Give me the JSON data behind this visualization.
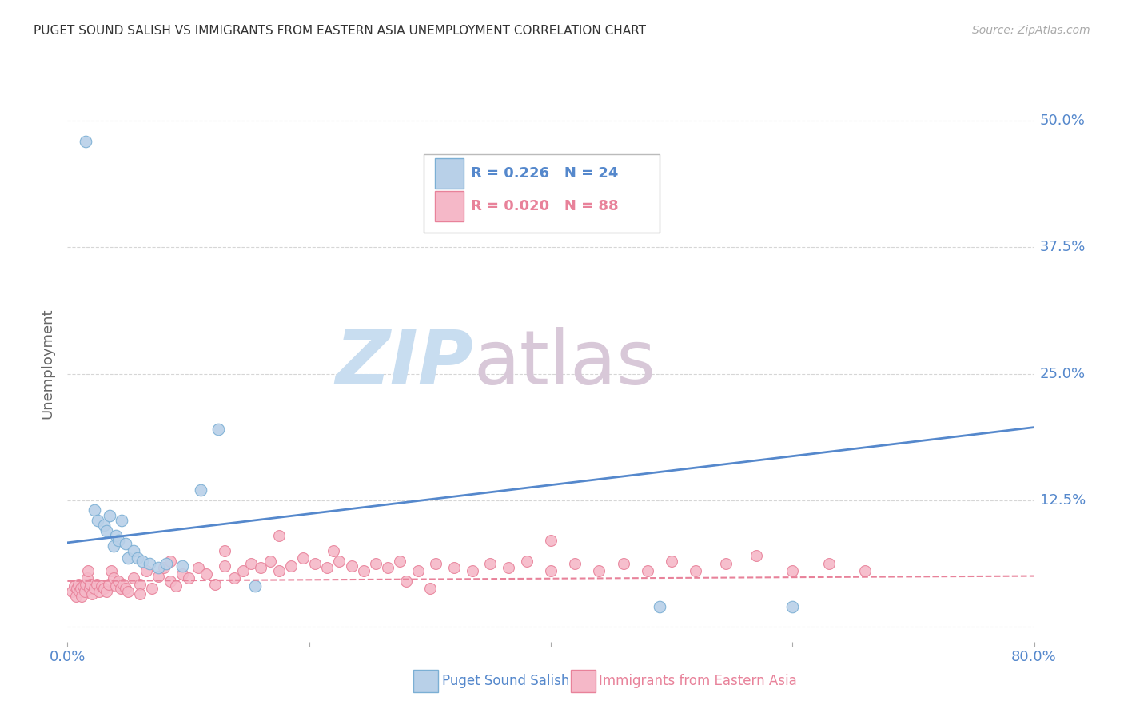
{
  "title": "PUGET SOUND SALISH VS IMMIGRANTS FROM EASTERN ASIA UNEMPLOYMENT CORRELATION CHART",
  "source": "Source: ZipAtlas.com",
  "ylabel": "Unemployment",
  "xlim": [
    0.0,
    0.8
  ],
  "ylim": [
    -0.015,
    0.535
  ],
  "yticks": [
    0.0,
    0.125,
    0.25,
    0.375,
    0.5
  ],
  "ytick_labels": [
    "",
    "12.5%",
    "25.0%",
    "37.5%",
    "50.0%"
  ],
  "xticks": [
    0.0,
    0.2,
    0.4,
    0.6,
    0.8
  ],
  "xtick_labels": [
    "0.0%",
    "",
    "",
    "",
    "80.0%"
  ],
  "background_color": "#ffffff",
  "grid_color": "#cccccc",
  "series1_label": "Puget Sound Salish",
  "series2_label": "Immigrants from Eastern Asia",
  "series1_color": "#b8d0e8",
  "series2_color": "#f5b8c8",
  "series1_edge_color": "#7bafd4",
  "series2_edge_color": "#e8829a",
  "series1_line_color": "#5588cc",
  "series2_line_color": "#e8829a",
  "series1_R": "0.226",
  "series1_N": "24",
  "series2_R": "0.020",
  "series2_N": "88",
  "title_color": "#333333",
  "axis_label_color": "#666666",
  "tick_label_color": "#5588cc",
  "source_color": "#aaaaaa",
  "watermark_zip_color": "#c8ddf0",
  "watermark_atlas_color": "#d8c8d8",
  "series1_x": [
    0.015,
    0.022,
    0.025,
    0.03,
    0.032,
    0.035,
    0.038,
    0.04,
    0.042,
    0.045,
    0.048,
    0.05,
    0.055,
    0.058,
    0.062,
    0.068,
    0.075,
    0.082,
    0.095,
    0.11,
    0.125,
    0.155,
    0.49,
    0.6
  ],
  "series1_y": [
    0.48,
    0.115,
    0.105,
    0.1,
    0.095,
    0.11,
    0.08,
    0.09,
    0.085,
    0.105,
    0.082,
    0.068,
    0.075,
    0.068,
    0.065,
    0.062,
    0.058,
    0.062,
    0.06,
    0.135,
    0.195,
    0.04,
    0.02,
    0.02
  ],
  "series2_x": [
    0.004,
    0.006,
    0.007,
    0.008,
    0.009,
    0.01,
    0.011,
    0.012,
    0.013,
    0.014,
    0.015,
    0.016,
    0.017,
    0.018,
    0.019,
    0.02,
    0.022,
    0.024,
    0.026,
    0.028,
    0.03,
    0.032,
    0.034,
    0.036,
    0.038,
    0.04,
    0.042,
    0.044,
    0.046,
    0.048,
    0.05,
    0.055,
    0.06,
    0.065,
    0.07,
    0.075,
    0.08,
    0.085,
    0.09,
    0.095,
    0.1,
    0.108,
    0.115,
    0.122,
    0.13,
    0.138,
    0.145,
    0.152,
    0.16,
    0.168,
    0.175,
    0.185,
    0.195,
    0.205,
    0.215,
    0.225,
    0.235,
    0.245,
    0.255,
    0.265,
    0.275,
    0.29,
    0.305,
    0.32,
    0.335,
    0.35,
    0.365,
    0.38,
    0.4,
    0.42,
    0.44,
    0.46,
    0.48,
    0.5,
    0.52,
    0.545,
    0.57,
    0.6,
    0.63,
    0.66,
    0.3,
    0.4,
    0.175,
    0.22,
    0.28,
    0.13,
    0.085,
    0.06
  ],
  "series2_y": [
    0.035,
    0.04,
    0.03,
    0.038,
    0.042,
    0.035,
    0.038,
    0.03,
    0.04,
    0.035,
    0.042,
    0.048,
    0.055,
    0.038,
    0.042,
    0.032,
    0.038,
    0.042,
    0.035,
    0.04,
    0.038,
    0.035,
    0.042,
    0.055,
    0.048,
    0.04,
    0.045,
    0.038,
    0.042,
    0.038,
    0.035,
    0.048,
    0.042,
    0.055,
    0.038,
    0.05,
    0.058,
    0.045,
    0.04,
    0.052,
    0.048,
    0.058,
    0.052,
    0.042,
    0.06,
    0.048,
    0.055,
    0.062,
    0.058,
    0.065,
    0.055,
    0.06,
    0.068,
    0.062,
    0.058,
    0.065,
    0.06,
    0.055,
    0.062,
    0.058,
    0.065,
    0.055,
    0.062,
    0.058,
    0.055,
    0.062,
    0.058,
    0.065,
    0.055,
    0.062,
    0.055,
    0.062,
    0.055,
    0.065,
    0.055,
    0.062,
    0.07,
    0.055,
    0.062,
    0.055,
    0.038,
    0.085,
    0.09,
    0.075,
    0.045,
    0.075,
    0.065,
    0.032
  ],
  "series1_line_x": [
    0.0,
    0.8
  ],
  "series1_line_y": [
    0.083,
    0.197
  ],
  "series2_line_x": [
    0.0,
    0.8
  ],
  "series2_line_y": [
    0.045,
    0.05
  ]
}
